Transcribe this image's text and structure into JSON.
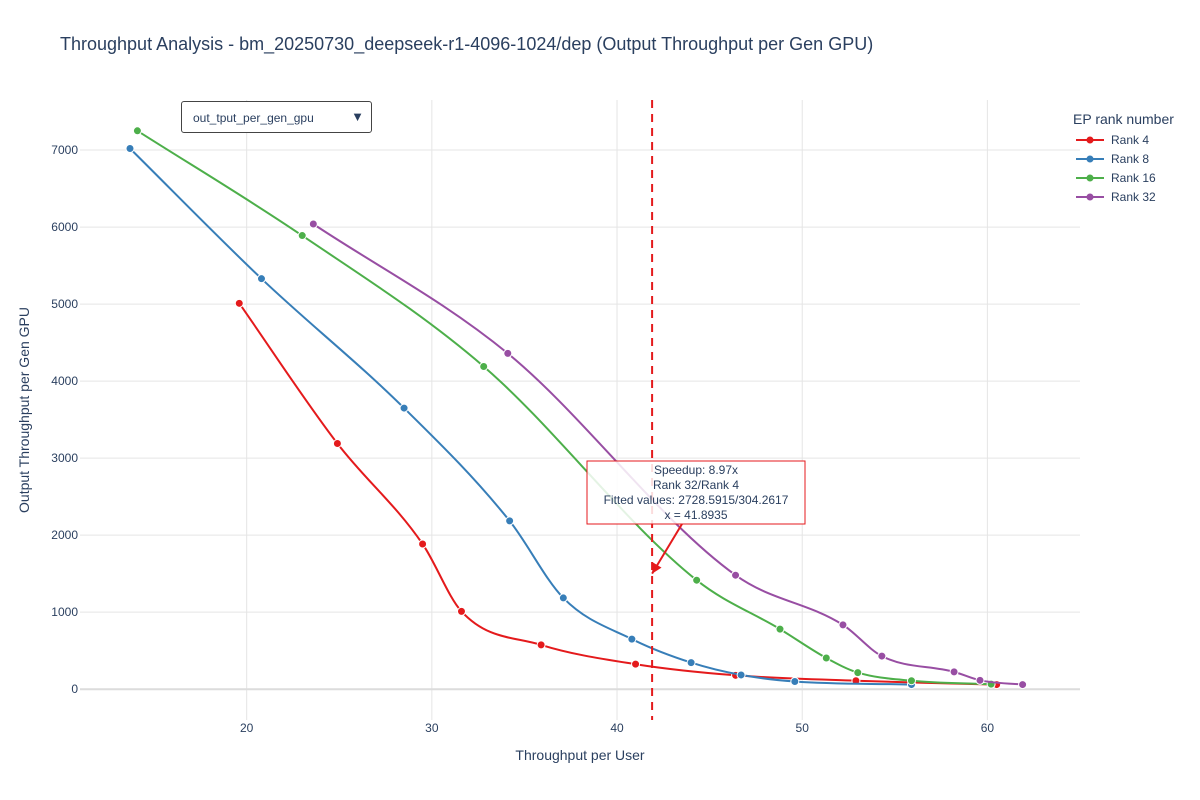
{
  "dropdown": {
    "selected": "out_tput_per_gen_gpu",
    "arrow_icon": "triangle-down-icon"
  },
  "chart_data": {
    "type": "line",
    "title": "Throughput Analysis - bm_20250730_deepseek-r1-4096-1024/dep (Output Throughput per Gen GPU)",
    "xlabel": "Throughput per User",
    "ylabel": "Output Throughput per Gen GPU",
    "xlim": [
      11,
      65
    ],
    "ylim": [
      -400,
      7650
    ],
    "xticks": [
      20,
      30,
      40,
      50,
      60
    ],
    "yticks": [
      0,
      1000,
      2000,
      3000,
      4000,
      5000,
      6000,
      7000
    ],
    "grid": true,
    "legend": {
      "title": "EP rank number",
      "placement": "top-right"
    },
    "series": [
      {
        "name": "Rank 4",
        "color": "#e41a1c",
        "x": [
          19.6,
          24.9,
          29.5,
          31.6,
          35.9,
          41.0,
          46.4,
          52.9,
          60.5
        ],
        "y": [
          5010,
          3190,
          1885,
          1010,
          575,
          325,
          180,
          110,
          60
        ]
      },
      {
        "name": "Rank 8",
        "color": "#377eb8",
        "x": [
          13.7,
          20.8,
          28.5,
          34.2,
          37.1,
          40.8,
          44.0,
          46.7,
          49.6,
          55.9
        ],
        "y": [
          7020,
          5330,
          3650,
          2185,
          1185,
          650,
          345,
          185,
          100,
          60
        ]
      },
      {
        "name": "Rank 16",
        "color": "#4daf4a",
        "x": [
          14.1,
          23.0,
          32.8,
          44.3,
          48.8,
          51.3,
          53.0,
          55.9,
          60.2
        ],
        "y": [
          7250,
          5890,
          4190,
          1415,
          780,
          405,
          215,
          110,
          65
        ]
      },
      {
        "name": "Rank 32",
        "color": "#984ea3",
        "x": [
          23.6,
          34.1,
          46.4,
          52.2,
          54.3,
          58.2,
          59.6,
          61.9
        ],
        "y": [
          6040,
          4360,
          1480,
          835,
          430,
          225,
          115,
          60
        ]
      }
    ],
    "vline": {
      "x": 41.8935,
      "color": "#e41a1c",
      "style": "dashed"
    },
    "annotation": {
      "lines": [
        "Speedup: 8.97x",
        "Rank 32/Rank 4",
        "Fitted values: 2728.5915/304.2617",
        "x = 41.8935"
      ],
      "arrow_to": {
        "x": 41.8935,
        "y": 1500
      },
      "border_color": "#e41a1c"
    }
  }
}
